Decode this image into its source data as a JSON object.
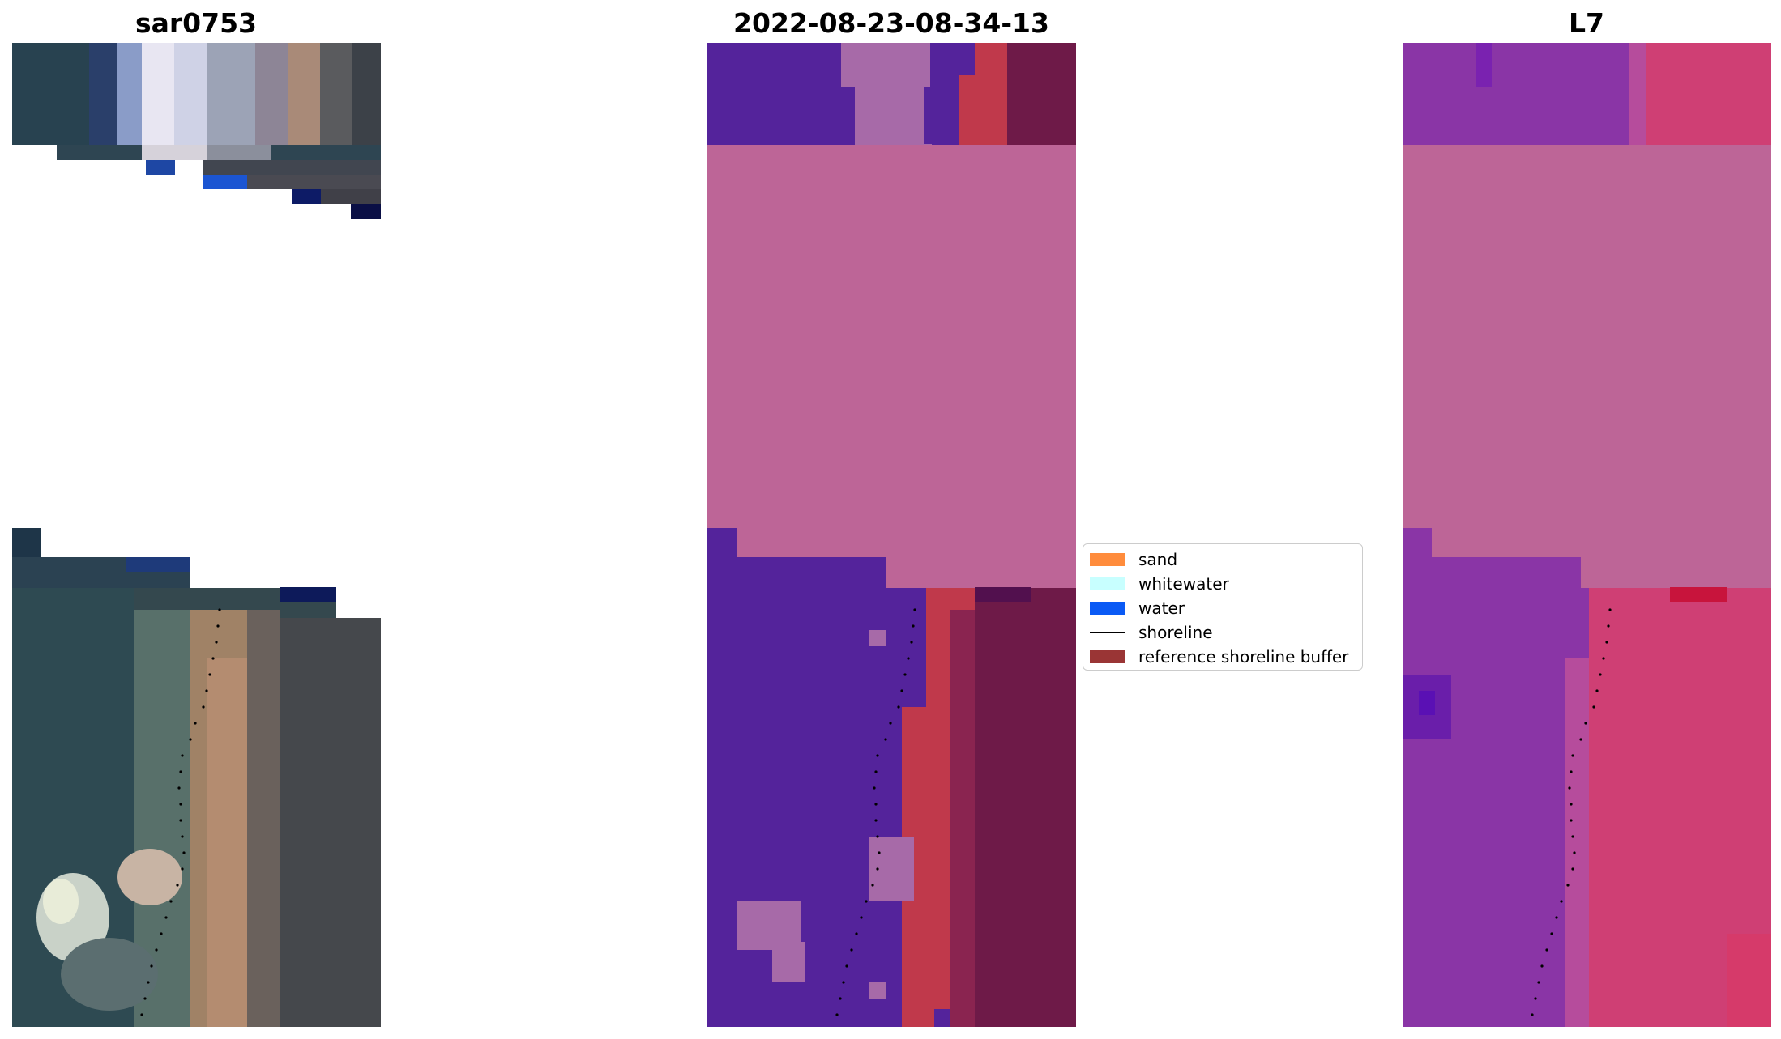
{
  "panels": [
    {
      "title": "sar0753"
    },
    {
      "title": "2022-08-23-08-34-13"
    },
    {
      "title": "L7"
    }
  ],
  "legend": {
    "items": [
      {
        "label": "sand",
        "color": "#ff8c3c",
        "kind": "patch"
      },
      {
        "label": "whitewater",
        "color": "#c8ffff",
        "kind": "patch"
      },
      {
        "label": "water",
        "color": "#0a5af5",
        "kind": "patch"
      },
      {
        "label": "shoreline",
        "color": "#000000",
        "kind": "line"
      },
      {
        "label": "reference shoreline buffer",
        "color": "#9a3535",
        "kind": "patch"
      }
    ]
  },
  "colors": {
    "class_pink": "#bd6597",
    "class_purple": "#54239b",
    "buffer_red": "#c0394b",
    "maroon": "#6e1a48",
    "l7_purple": "#8a35a6",
    "l7_pink": "#cf3f74"
  }
}
